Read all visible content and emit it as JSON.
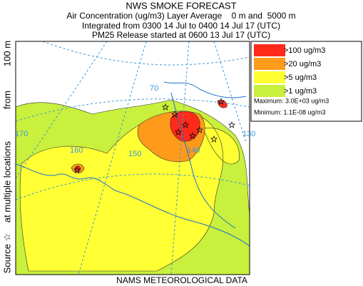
{
  "header": {
    "title": "NWS SMOKE FORECAST",
    "lines": [
      "Air Concentration (ug/m3) Layer Average    0 m and  5000 m",
      "Integrated from 0300 14 Jul to 0400 14 Jul 17 (UTC)",
      "PM25 Release started at 0600 13 Jul 17 (UTC)"
    ]
  },
  "source_label": [
    "Source ☆",
    "at multiple locations",
    "from",
    "100 m"
  ],
  "legend": {
    "items": [
      {
        "label": ">100 ug/m3",
        "color": "#ff2a1a"
      },
      {
        "label": ">20 ug/m3",
        "color": "#ff9a1a"
      },
      {
        "label": ">5 ug/m3",
        "color": "#ffff33"
      },
      {
        "label": ">1 ug/m3",
        "color": "#c8f03c"
      }
    ],
    "maximum": "Maximum: 3.0E+03 ug/m3",
    "minimum": "Minimum: 1.1E-08 ug/m3"
  },
  "map": {
    "graticule_labels": [
      "70",
      "170",
      "160",
      "150",
      "140",
      "130"
    ]
  },
  "footer": "NAMS METEOROLOGICAL DATA"
}
